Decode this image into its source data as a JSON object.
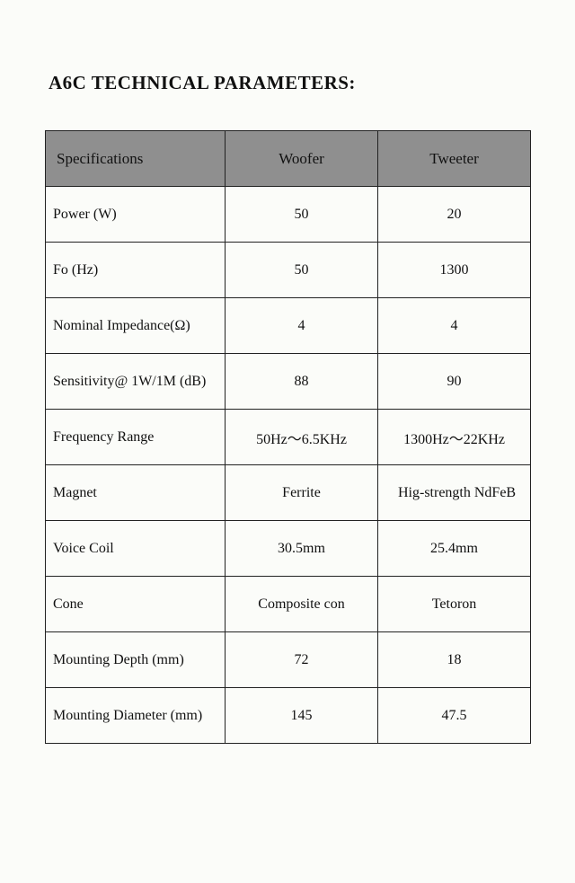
{
  "title": "A6C TECHNICAL PARAMETERS:",
  "table": {
    "header_bg": "#8f8f8f",
    "border_color": "#222222",
    "columns": [
      "Specifications",
      "Woofer",
      "Tweeter"
    ],
    "rows": [
      {
        "label": "Power (W)",
        "woofer": "50",
        "tweeter": "20"
      },
      {
        "label": "Fo (Hz)",
        "woofer": "50",
        "tweeter": "1300"
      },
      {
        "label": "Nominal  Impedance(Ω)",
        "woofer": "4",
        "tweeter": "4"
      },
      {
        "label": "Sensitivity@ 1W/1M (dB)",
        "woofer": "88",
        "tweeter": "90"
      },
      {
        "label": "Frequency Range",
        "woofer": "50Hz～6.5KHz",
        "tweeter": "1300Hz～22KHz"
      },
      {
        "label": "Magnet",
        "woofer": "Ferrite",
        "tweeter": "Hig-strength NdFeB",
        "tweeter_align": "left"
      },
      {
        "label": "Voice Coil",
        "woofer": "30.5mm",
        "tweeter": "25.4mm"
      },
      {
        "label": "Cone",
        "woofer": "Composite con",
        "tweeter": "Tetoron"
      },
      {
        "label": "Mounting Depth (mm)",
        "woofer": "72",
        "tweeter": "18"
      },
      {
        "label": "Mounting Diameter (mm)",
        "woofer": "145",
        "tweeter": "47.5"
      }
    ]
  }
}
